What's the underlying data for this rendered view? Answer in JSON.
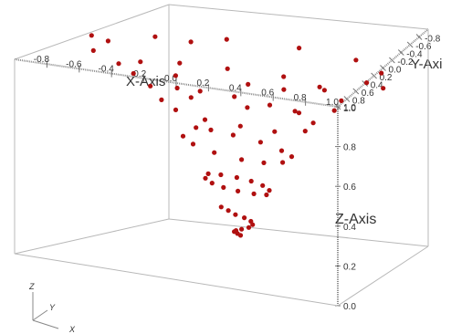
{
  "chart_data": {
    "type": "scatter",
    "x_axis": {
      "label": "X-Axis",
      "range": [
        -1.0,
        1.0
      ],
      "tick_labels": [
        "-0.8",
        "-0.6",
        "-0.4",
        "-0.2",
        "0.0",
        "0.2",
        "0.4",
        "0.6",
        "0.8",
        "1.0"
      ]
    },
    "y_axis": {
      "label": "Y-Axi",
      "range": [
        -1.0,
        1.0
      ],
      "tick_labels": [
        "1.0",
        "0.8",
        "0.6",
        "0.4",
        "0.2",
        "0.0",
        "-0.2",
        "-0.4",
        "-0.6",
        "-0.8"
      ]
    },
    "z_axis": {
      "label": "Z-Axis",
      "range": [
        0.0,
        1.0
      ],
      "tick_labels": [
        "0.0",
        "0.2",
        "0.4",
        "0.6",
        "0.8",
        "1.0"
      ]
    },
    "marker_color": "#b01010",
    "series": [
      {
        "description": "spiral of points descending from the top plane toward the bottom center",
        "points": [
          [
            -0.8,
            0.0,
            1.0
          ],
          [
            -0.7,
            0.4,
            1.0
          ],
          [
            -0.7,
            -0.4,
            1.0
          ],
          [
            -0.4,
            0.7,
            1.0
          ],
          [
            -0.4,
            -0.7,
            1.0
          ],
          [
            0.0,
            0.8,
            1.0
          ],
          [
            0.0,
            -0.8,
            1.0
          ],
          [
            0.4,
            0.7,
            1.0
          ],
          [
            0.4,
            -0.7,
            1.0
          ],
          [
            0.7,
            0.4,
            1.0
          ],
          [
            0.7,
            -0.4,
            1.0
          ],
          [
            0.8,
            0.0,
            1.0
          ],
          [
            -0.95,
            0.1,
            1.0
          ],
          [
            0.95,
            -0.1,
            1.0
          ],
          [
            -0.55,
            0.55,
            0.98
          ],
          [
            0.55,
            -0.55,
            0.98
          ],
          [
            -0.6,
            0.0,
            0.92
          ],
          [
            -0.5,
            0.3,
            0.9
          ],
          [
            -0.5,
            -0.3,
            0.9
          ],
          [
            -0.3,
            0.5,
            0.88
          ],
          [
            -0.3,
            -0.5,
            0.88
          ],
          [
            0.0,
            0.6,
            0.87
          ],
          [
            0.0,
            -0.6,
            0.87
          ],
          [
            0.3,
            0.5,
            0.85
          ],
          [
            0.3,
            -0.5,
            0.85
          ],
          [
            0.5,
            0.3,
            0.84
          ],
          [
            0.5,
            -0.3,
            0.84
          ],
          [
            0.6,
            0.0,
            0.83
          ],
          [
            -0.42,
            0.1,
            0.8
          ],
          [
            -0.35,
            0.25,
            0.78
          ],
          [
            -0.35,
            -0.25,
            0.78
          ],
          [
            -0.2,
            0.38,
            0.76
          ],
          [
            -0.2,
            -0.38,
            0.76
          ],
          [
            0.0,
            0.42,
            0.74
          ],
          [
            0.0,
            -0.42,
            0.74
          ],
          [
            0.2,
            0.38,
            0.73
          ],
          [
            0.2,
            -0.38,
            0.73
          ],
          [
            0.35,
            0.25,
            0.71
          ],
          [
            0.35,
            -0.25,
            0.71
          ],
          [
            0.42,
            0.0,
            0.7
          ],
          [
            -0.28,
            0.05,
            0.62
          ],
          [
            -0.25,
            0.18,
            0.6
          ],
          [
            -0.25,
            -0.18,
            0.6
          ],
          [
            -0.15,
            0.26,
            0.58
          ],
          [
            -0.15,
            -0.26,
            0.58
          ],
          [
            0.0,
            0.3,
            0.56
          ],
          [
            0.0,
            -0.3,
            0.56
          ],
          [
            0.15,
            0.26,
            0.54
          ],
          [
            0.15,
            -0.26,
            0.54
          ],
          [
            0.25,
            0.18,
            0.53
          ],
          [
            0.25,
            -0.18,
            0.53
          ],
          [
            0.28,
            0.0,
            0.52
          ],
          [
            -0.18,
            0.0,
            0.4
          ],
          [
            -0.15,
            0.1,
            0.39
          ],
          [
            -0.15,
            -0.1,
            0.39
          ],
          [
            -0.08,
            0.16,
            0.38
          ],
          [
            -0.08,
            -0.16,
            0.38
          ],
          [
            0.0,
            0.18,
            0.37
          ],
          [
            0.0,
            -0.18,
            0.37
          ],
          [
            0.08,
            0.16,
            0.36
          ],
          [
            0.08,
            -0.16,
            0.36
          ],
          [
            0.15,
            0.1,
            0.35
          ],
          [
            0.15,
            -0.1,
            0.35
          ],
          [
            0.18,
            0.0,
            0.34
          ],
          [
            -0.1,
            0.0,
            0.24
          ],
          [
            -0.08,
            0.05,
            0.22
          ],
          [
            -0.05,
            0.08,
            0.2
          ],
          [
            0.0,
            0.09,
            0.19
          ],
          [
            0.05,
            0.07,
            0.18
          ],
          [
            0.08,
            0.03,
            0.17
          ],
          [
            0.08,
            -0.02,
            0.16
          ],
          [
            0.05,
            -0.05,
            0.15
          ],
          [
            0.02,
            -0.06,
            0.14
          ],
          [
            0.0,
            -0.04,
            0.13
          ],
          [
            0.01,
            -0.02,
            0.12
          ],
          [
            0.02,
            0.0,
            0.11
          ]
        ]
      }
    ],
    "grid": false,
    "legend": "none"
  },
  "orientation_triad": {
    "z_label": "Z",
    "y_label": "Y",
    "x_label": "X"
  }
}
